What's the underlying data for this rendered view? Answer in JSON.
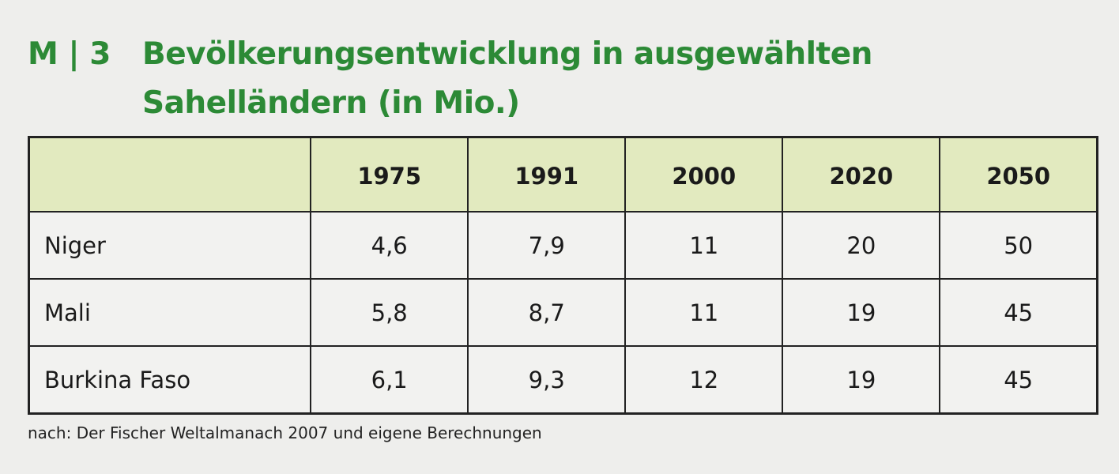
{
  "title": {
    "label": "M | 3",
    "text": "Bevölkerungsentwicklung in ausgewählten Sahelländern (in Mio.)"
  },
  "table": {
    "headers": [
      "",
      "1975",
      "1991",
      "2000",
      "2020",
      "2050"
    ],
    "rows": [
      {
        "country": "Niger",
        "values": [
          "4,6",
          "7,9",
          "11",
          "20",
          "50"
        ]
      },
      {
        "country": "Mali",
        "values": [
          "5,8",
          "8,7",
          "11",
          "19",
          "45"
        ]
      },
      {
        "country": "Burkina Faso",
        "values": [
          "6,1",
          "9,3",
          "12",
          "19",
          "45"
        ]
      }
    ]
  },
  "source": "nach: Der Fischer Weltalmanach 2007 und eigene Berechnungen",
  "colors": {
    "title": "#2c8a36",
    "header_bg": "#e2eabf"
  }
}
